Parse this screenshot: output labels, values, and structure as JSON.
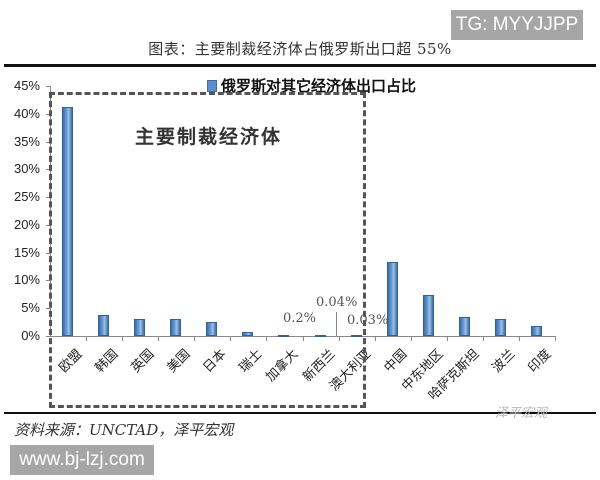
{
  "badges": {
    "tg": "TG: MYYJJPP",
    "site": "www.bj-lzj.com"
  },
  "header": {
    "title": "图表：主要制裁经济体占俄罗斯出口超 55%"
  },
  "legend": {
    "label": "俄罗斯对其它经济体出口占比",
    "color": "#5b8fc7"
  },
  "box": {
    "label": "主要制裁经济体"
  },
  "footer": {
    "source": "资料来源：UNCTAD，泽平宏观",
    "watermark": "泽平宏观"
  },
  "annotations": {
    "canada": "0.2%",
    "new_zealand": "0.04%",
    "australia": "0.03%"
  },
  "y_ticks": [
    "45%",
    "40%",
    "35%",
    "30%",
    "25%",
    "20%",
    "15%",
    "10%",
    "5%",
    "0%"
  ],
  "chart_data": {
    "type": "bar",
    "title": "图表：主要制裁经济体占俄罗斯出口超 55%",
    "xlabel": "",
    "ylabel": "",
    "ylim": [
      0,
      45
    ],
    "y_tick_labels": [
      "0%",
      "5%",
      "10%",
      "15%",
      "20%",
      "25%",
      "30%",
      "35%",
      "40%",
      "45%"
    ],
    "grid": false,
    "legend_position": "top",
    "categories": [
      "欧盟",
      "韩国",
      "英国",
      "美国",
      "日本",
      "瑞士",
      "加拿大",
      "新西兰",
      "澳大利亚",
      "中国",
      "中东地区",
      "哈萨克斯坦",
      "波兰",
      "印度"
    ],
    "series": [
      {
        "name": "俄罗斯对其它经济体出口占比",
        "values": [
          41.3,
          3.8,
          3.0,
          3.0,
          2.6,
          0.8,
          0.2,
          0.04,
          0.03,
          13.4,
          7.4,
          3.4,
          3.0,
          1.8
        ]
      }
    ],
    "annotations": [
      {
        "category": "加拿大",
        "text": "0.2%"
      },
      {
        "category": "新西兰",
        "text": "0.04%"
      },
      {
        "category": "澳大利亚",
        "text": "0.03%"
      },
      {
        "region": "欧盟–澳大利亚",
        "text": "主要制裁经济体",
        "style": "dashed box"
      }
    ]
  }
}
